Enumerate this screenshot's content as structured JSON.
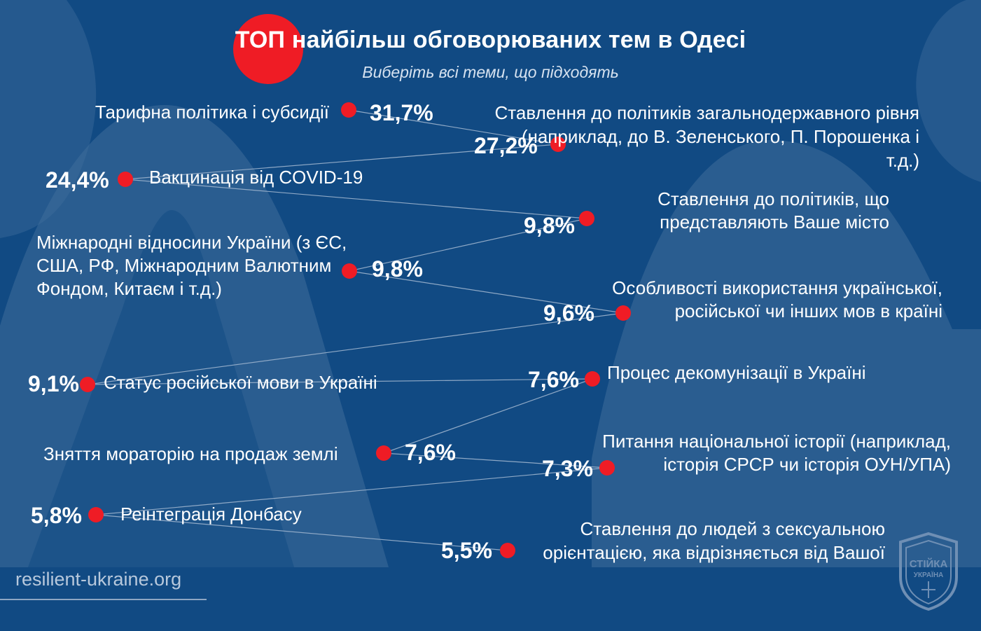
{
  "header": {
    "title_highlight": "ТОП",
    "title_rest": "найбільш обговорюваних тем в Одесі",
    "subtitle": "Виберіть всі теми, що підходять"
  },
  "footer": {
    "site": "resilient-ukraine.org"
  },
  "logo": {
    "text_line1": "СТІЙКА",
    "text_line2": "УКРАЇНА"
  },
  "colors": {
    "background": "#114a83",
    "accent": "#ef1c25",
    "shape": "#3f6d9b",
    "connector": "#8fa9c6"
  },
  "chart_data": {
    "type": "bar",
    "unit": "%",
    "items": [
      {
        "label": "Тарифна політика і субсидії",
        "value": 31.7,
        "display": "31,7%"
      },
      {
        "label": "Ставлення до політиків загальнодержавного рівня (наприклад, до В. Зеленського, П. Порошенка і т.д.)",
        "value": 27.2,
        "display": "27,2%"
      },
      {
        "label": "Вакцинація від COVID-19",
        "value": 24.4,
        "display": "24,4%"
      },
      {
        "label": "Ставлення до політиків, що представляють Ваше місто",
        "value": 9.8,
        "display": "9,8%"
      },
      {
        "label": "Міжнародні відносини України (з ЄС, США, РФ, Міжнародним Валютним Фондом, Китаєм і т.д.)",
        "value": 9.8,
        "display": "9,8%"
      },
      {
        "label": "Особливості використання української, російської чи інших мов в країні",
        "value": 9.6,
        "display": "9,6%"
      },
      {
        "label": "Статус російської мови в Україні",
        "value": 9.1,
        "display": "9,1%"
      },
      {
        "label": "Процес декомунізації в Україні",
        "value": 7.6,
        "display": "7,6%"
      },
      {
        "label": "Зняття мораторію на продаж землі",
        "value": 7.6,
        "display": "7,6%"
      },
      {
        "label": "Питання національної історії (наприклад, історія СРСР чи історія ОУН/УПА)",
        "value": 7.3,
        "display": "7,3%"
      },
      {
        "label": "Реінтеграція Донбасу",
        "value": 5.8,
        "display": "5,8%"
      },
      {
        "label": "Ставлення до людей з сексуальною орієнтацією, яка відрізняється від Вашої",
        "value": 5.5,
        "display": "5,5%"
      }
    ]
  }
}
